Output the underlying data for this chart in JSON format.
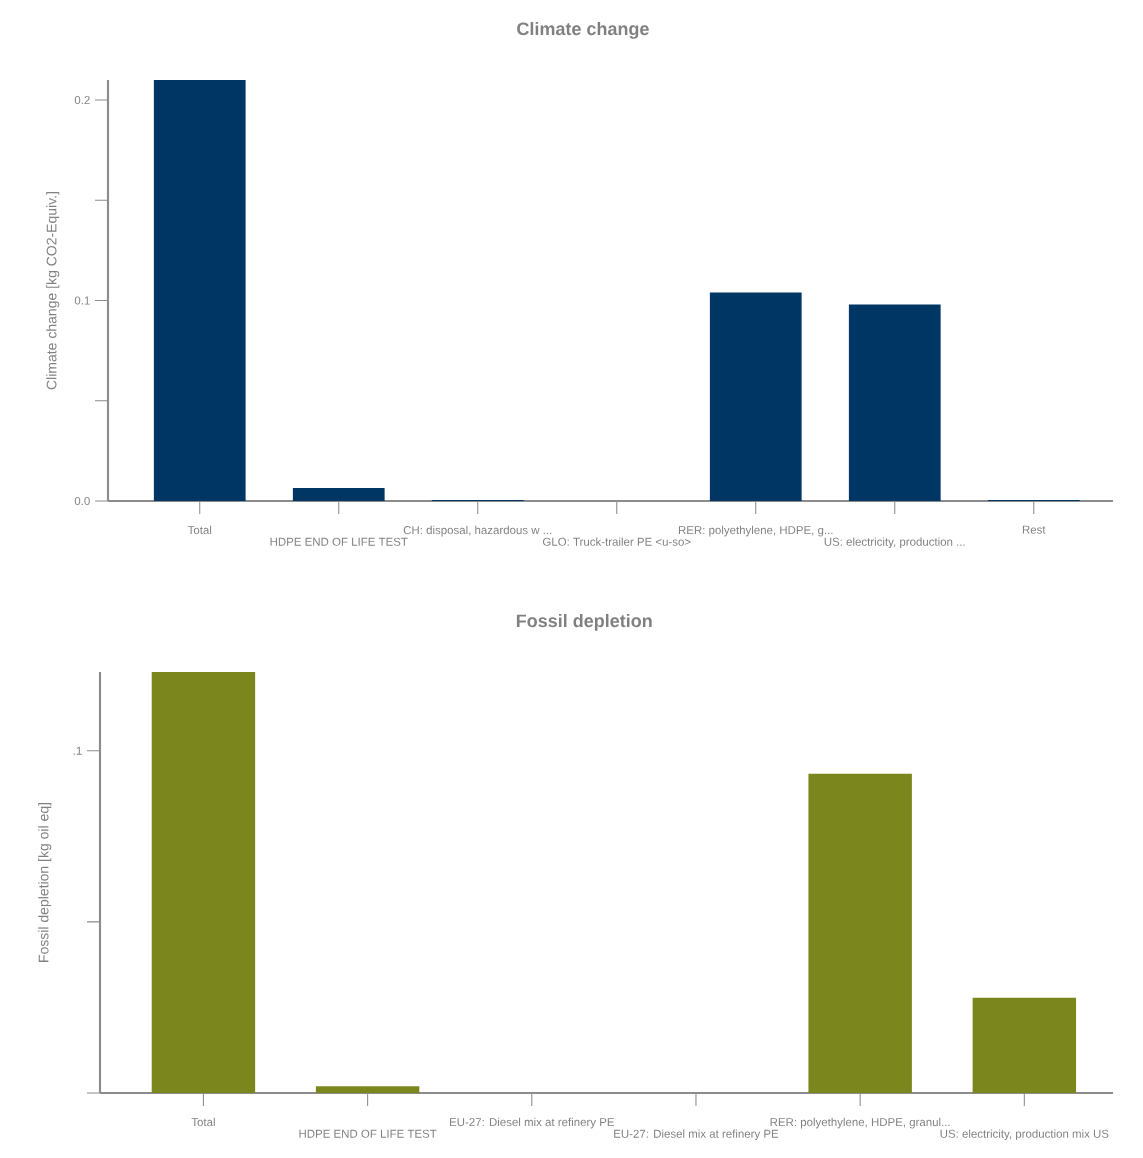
{
  "chart_data": [
    {
      "type": "bar",
      "title": "Climate change",
      "ylabel": "Climate change [kg CO2-Equiv.]",
      "categories": [
        "Total",
        "HDPE END OF LIFE TEST",
        "CH: disposal, hazardous w ...",
        "GLO: Truck-trailer PE <u-so>",
        "RER: polyethylene, HDPE, g...",
        "US: electricity, production ...",
        "Rest"
      ],
      "values": [
        0.21,
        0.0065,
        0.0005,
        0,
        0.104,
        0.098,
        0.0005
      ],
      "color": "#003663",
      "ylim": [
        0,
        0.21
      ],
      "yticks": [
        {
          "value": 0,
          "label": "0.0"
        },
        {
          "value": 0.05,
          "label": null
        },
        0.1,
        {
          "value": 0.15,
          "label": null
        },
        0.2
      ]
    },
    {
      "type": "bar",
      "title": "Fossil depletion",
      "ylabel": "Fossil depletion [kg oil eq]",
      "categories": [
        "Total",
        "HDPE END OF LIFE TEST",
        "EU-27: Diesel mix at refinery PE",
        "EU-27: Diesel mix at refinery PE",
        "RER: polyethylene, HDPE, granul...",
        "US: electricity, production mix US"
      ],
      "values": [
        0.123,
        0.002,
        0,
        0,
        0.0933,
        0.0278
      ],
      "color": "#7b861c",
      "ylim": [
        0,
        0.123
      ],
      "yticks": [
        {
          "value": 0,
          "label": null
        },
        {
          "value": 0.05,
          "label": null
        },
        {
          "value": 0.1,
          "label": ".1"
        }
      ]
    }
  ]
}
